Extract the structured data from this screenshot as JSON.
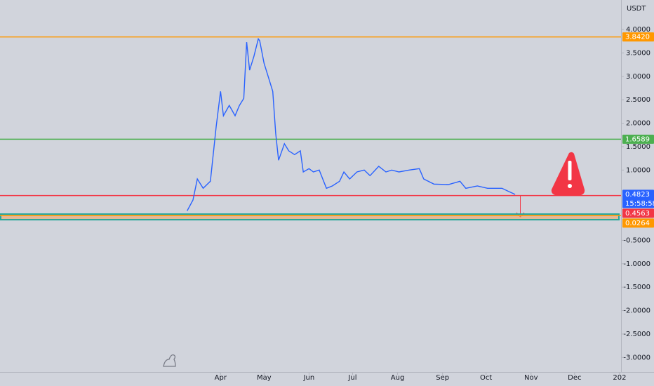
{
  "chart_data": {
    "type": "line",
    "unit": "USDT",
    "background": "#d1d4dc",
    "xlim": [
      -152,
      276
    ],
    "ylim": [
      -3.31,
      4.63
    ],
    "xticks": [
      {
        "value": 0,
        "label": "Apr"
      },
      {
        "value": 30,
        "label": "May"
      },
      {
        "value": 61,
        "label": "Jun"
      },
      {
        "value": 91,
        "label": "Jul"
      },
      {
        "value": 122,
        "label": "Aug"
      },
      {
        "value": 153,
        "label": "Sep"
      },
      {
        "value": 183,
        "label": "Oct"
      },
      {
        "value": 214,
        "label": "Nov"
      },
      {
        "value": 244,
        "label": "Dec"
      },
      {
        "value": 275,
        "label": "202"
      }
    ],
    "yticks": [
      {
        "value": 4,
        "label": "4.0000"
      },
      {
        "value": 3.5,
        "label": "3.5000"
      },
      {
        "value": 3,
        "label": "3.0000"
      },
      {
        "value": 2.5,
        "label": "2.5000"
      },
      {
        "value": 2,
        "label": "2.0000"
      },
      {
        "value": 1.5,
        "label": "1.5000"
      },
      {
        "value": 1,
        "label": "1.0000"
      },
      {
        "value": -0.5,
        "label": "-0.5000"
      },
      {
        "value": -1,
        "label": "-1.0000"
      },
      {
        "value": -1.5,
        "label": "-1.5000"
      },
      {
        "value": -2,
        "label": "-2.0000"
      },
      {
        "value": -2.5,
        "label": "-2.5000"
      },
      {
        "value": -3,
        "label": "-3.0000"
      }
    ],
    "series": [
      {
        "color": "#2962ff",
        "x": [
          -23,
          -19,
          -16,
          -12,
          -7,
          -3,
          0,
          2,
          6,
          10,
          13,
          16,
          18,
          20,
          23,
          26,
          27,
          30,
          33,
          36,
          38,
          40,
          44,
          47,
          51,
          55,
          57,
          61,
          64,
          68,
          73,
          77,
          82,
          85,
          89,
          94,
          99,
          103,
          109,
          114,
          118,
          123,
          130,
          137,
          140,
          147,
          157,
          165,
          169,
          177,
          184,
          194,
          198,
          203
        ],
        "values": [
          0.13,
          0.36,
          0.81,
          0.61,
          0.76,
          1.93,
          2.68,
          2.16,
          2.38,
          2.16,
          2.38,
          2.53,
          3.73,
          3.13,
          3.43,
          3.8,
          3.76,
          3.28,
          2.98,
          2.68,
          1.78,
          1.21,
          1.56,
          1.41,
          1.33,
          1.41,
          0.96,
          1.03,
          0.96,
          1.0,
          0.61,
          0.66,
          0.76,
          0.96,
          0.81,
          0.96,
          1.0,
          0.88,
          1.08,
          0.96,
          1.0,
          0.96,
          1.0,
          1.03,
          0.81,
          0.7,
          0.69,
          0.76,
          0.61,
          0.66,
          0.61,
          0.61,
          0.55,
          0.48
        ]
      }
    ],
    "zone": {
      "range": [
        -0.06,
        0.06
      ],
      "border": "#26a69a",
      "fill": "#f0a35e"
    },
    "hlines": [
      {
        "value": 3.842,
        "label": "3.8420",
        "color": "#ff9800"
      },
      {
        "value": 1.6589,
        "label": "1.6589",
        "color": "#4caf50"
      },
      {
        "value": 0.4563,
        "label": "0.4563",
        "color": "#f23645"
      },
      {
        "value": 0.0264,
        "label": "0.0264",
        "color": "#ff9800"
      }
    ],
    "last_price": {
      "value": 0.4823,
      "label": "0.4823",
      "countdown": "15:58:58",
      "color": "#2962ff"
    }
  }
}
